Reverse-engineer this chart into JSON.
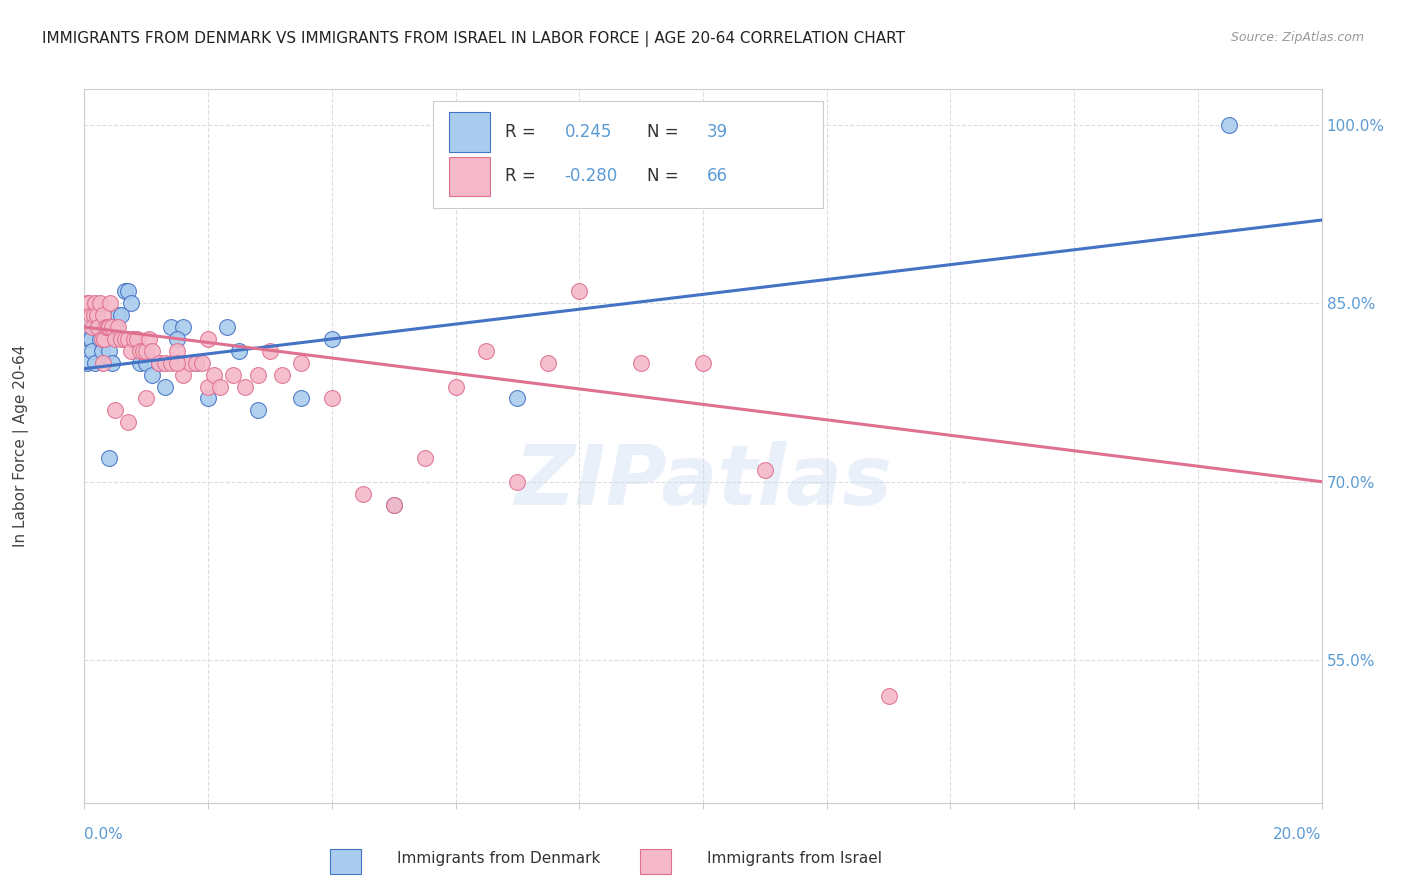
{
  "title": "IMMIGRANTS FROM DENMARK VS IMMIGRANTS FROM ISRAEL IN LABOR FORCE | AGE 20-64 CORRELATION CHART",
  "source": "Source: ZipAtlas.com",
  "ylabel": "In Labor Force | Age 20-64",
  "right_ytick_values": [
    55.0,
    70.0,
    85.0,
    100.0
  ],
  "xlim": [
    0.0,
    20.0
  ],
  "ylim": [
    43.0,
    103.0
  ],
  "denmark_color": "#aaccee",
  "israel_color": "#f4b8c8",
  "denmark_line_color": "#4472c4",
  "israel_line_color": "#e07090",
  "denmark_R": 0.245,
  "denmark_N": 39,
  "israel_R": -0.28,
  "israel_N": 66,
  "dk_line_x0": 0.0,
  "dk_line_y0": 79.5,
  "dk_line_x1": 20.0,
  "dk_line_y1": 92.0,
  "is_line_x0": 0.0,
  "is_line_y0": 83.0,
  "is_line_x1": 20.0,
  "is_line_y1": 70.0,
  "denmark_scatter_x": [
    0.05,
    0.08,
    0.1,
    0.12,
    0.15,
    0.18,
    0.2,
    0.25,
    0.28,
    0.3,
    0.35,
    0.4,
    0.45,
    0.5,
    0.55,
    0.6,
    0.65,
    0.7,
    0.75,
    0.8,
    0.9,
    1.0,
    1.1,
    1.2,
    1.4,
    1.6,
    1.8,
    2.0,
    2.3,
    2.8,
    3.5,
    4.0,
    1.3,
    1.5,
    2.5,
    5.0,
    7.0,
    18.5,
    0.4
  ],
  "denmark_scatter_y": [
    80,
    82,
    82,
    81,
    83,
    80,
    83,
    82,
    81,
    83,
    82,
    81,
    80,
    83,
    84,
    84,
    86,
    86,
    85,
    82,
    80,
    80,
    79,
    80,
    83,
    83,
    80,
    77,
    83,
    76,
    77,
    82,
    78,
    82,
    81,
    68,
    77,
    100,
    72
  ],
  "israel_scatter_x": [
    0.05,
    0.07,
    0.1,
    0.12,
    0.15,
    0.18,
    0.2,
    0.22,
    0.25,
    0.28,
    0.3,
    0.32,
    0.35,
    0.38,
    0.4,
    0.42,
    0.45,
    0.5,
    0.55,
    0.6,
    0.65,
    0.7,
    0.75,
    0.8,
    0.85,
    0.9,
    0.95,
    1.0,
    1.05,
    1.1,
    1.2,
    1.3,
    1.4,
    1.5,
    1.6,
    1.7,
    1.8,
    1.9,
    2.0,
    2.1,
    2.2,
    2.4,
    2.6,
    2.8,
    3.0,
    3.2,
    3.5,
    4.0,
    4.5,
    5.0,
    5.5,
    6.0,
    6.5,
    7.0,
    7.5,
    8.0,
    9.0,
    10.0,
    11.0,
    13.0,
    0.3,
    0.5,
    0.7,
    1.0,
    1.5,
    2.0
  ],
  "israel_scatter_y": [
    85,
    85,
    84,
    83,
    84,
    85,
    84,
    83,
    85,
    82,
    84,
    82,
    83,
    83,
    83,
    85,
    83,
    82,
    83,
    82,
    82,
    82,
    81,
    82,
    82,
    81,
    81,
    81,
    82,
    81,
    80,
    80,
    80,
    81,
    79,
    80,
    80,
    80,
    78,
    79,
    78,
    79,
    78,
    79,
    81,
    79,
    80,
    77,
    69,
    68,
    72,
    78,
    81,
    70,
    80,
    86,
    80,
    80,
    71,
    52,
    80,
    76,
    75,
    77,
    80,
    82
  ],
  "watermark": "ZIPatlas",
  "background_color": "#ffffff",
  "grid_color": "#dddddd"
}
